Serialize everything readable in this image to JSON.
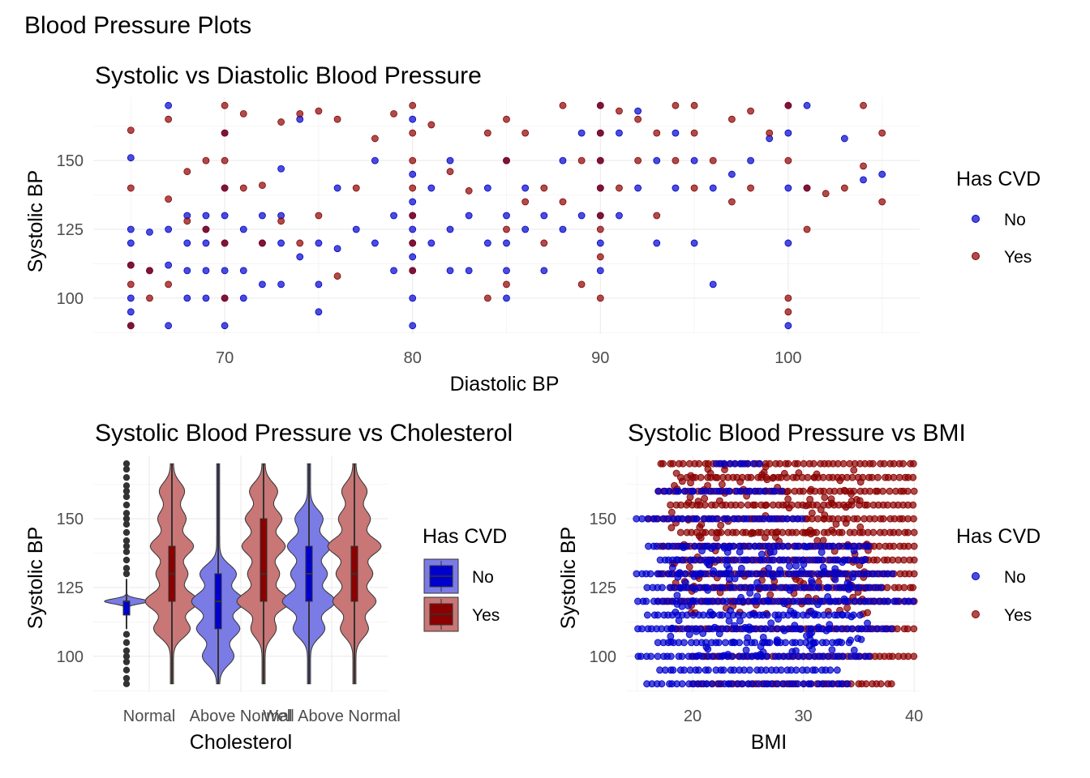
{
  "figure": {
    "title": "Blood Pressure Plots"
  },
  "colors": {
    "no_point": "#0000CD",
    "yes_point": "#8B0000",
    "no_violin_fill": "#7B7BE6",
    "yes_violin_fill": "#C87676",
    "no_box_fill": "#0000CD",
    "yes_box_fill": "#8B0000",
    "outlier": "#333333",
    "grid": "#EBEBEB"
  },
  "legend": {
    "title": "Has CVD",
    "items": [
      "No",
      "Yes"
    ]
  },
  "chart_data": [
    {
      "id": "scatter_dia",
      "type": "scatter",
      "title": "Systolic vs Diastolic Blood Pressure",
      "xlabel": "Diastolic BP",
      "ylabel": "Systolic BP",
      "xlim": [
        63,
        107
      ],
      "ylim": [
        87,
        173
      ],
      "xticks": [
        70,
        80,
        90,
        100
      ],
      "yticks": [
        100,
        125,
        150
      ],
      "grid": true,
      "legend_position": "right",
      "series": [
        {
          "name": "No",
          "x": [
            65,
            65,
            65,
            65,
            65,
            65,
            65,
            66,
            66,
            67,
            67,
            67,
            67,
            68,
            68,
            68,
            68,
            69,
            69,
            69,
            69,
            69,
            70,
            70,
            70,
            70,
            70,
            70,
            70,
            71,
            71,
            71,
            72,
            72,
            72,
            73,
            73,
            73,
            73,
            74,
            74,
            75,
            75,
            75,
            76,
            76,
            77,
            78,
            78,
            79,
            79,
            80,
            80,
            80,
            80,
            80,
            80,
            80,
            80,
            80,
            80,
            81,
            81,
            82,
            82,
            82,
            83,
            83,
            84,
            84,
            85,
            85,
            85,
            85,
            85,
            86,
            86,
            87,
            87,
            88,
            88,
            89,
            89,
            90,
            90,
            90,
            90,
            90,
            90,
            90,
            91,
            91,
            92,
            92,
            93,
            93,
            94,
            94,
            95,
            95,
            96,
            96,
            97,
            98,
            99,
            100,
            100,
            100,
            100,
            100,
            101,
            101,
            103,
            104,
            105
          ],
          "y": [
            151,
            125,
            120,
            112,
            100,
            95,
            90,
            124,
            110,
            170,
            125,
            112,
            90,
            130,
            120,
            110,
            100,
            130,
            125,
            120,
            110,
            100,
            160,
            140,
            130,
            120,
            110,
            100,
            90,
            125,
            110,
            100,
            130,
            120,
            105,
            147,
            130,
            120,
            105,
            165,
            115,
            120,
            105,
            95,
            140,
            118,
            125,
            150,
            120,
            130,
            110,
            165,
            145,
            135,
            130,
            125,
            120,
            115,
            110,
            100,
            90,
            140,
            120,
            150,
            125,
            110,
            130,
            110,
            140,
            120,
            150,
            130,
            120,
            110,
            100,
            140,
            125,
            130,
            110,
            150,
            125,
            160,
            130,
            170,
            160,
            150,
            140,
            130,
            120,
            110,
            160,
            130,
            168,
            140,
            150,
            120,
            160,
            140,
            150,
            120,
            140,
            105,
            145,
            150,
            158,
            170,
            160,
            140,
            120,
            90,
            170,
            140,
            158,
            143,
            145
          ]
        },
        {
          "name": "Yes",
          "x": [
            65,
            65,
            65,
            65,
            65,
            66,
            66,
            67,
            67,
            67,
            68,
            68,
            69,
            69,
            70,
            70,
            70,
            70,
            70,
            70,
            71,
            71,
            72,
            72,
            73,
            73,
            74,
            74,
            75,
            75,
            76,
            76,
            77,
            78,
            79,
            80,
            80,
            80,
            80,
            80,
            80,
            80,
            81,
            82,
            83,
            84,
            84,
            85,
            85,
            85,
            85,
            86,
            86,
            87,
            87,
            88,
            88,
            89,
            89,
            90,
            90,
            90,
            90,
            90,
            90,
            90,
            90,
            91,
            91,
            92,
            92,
            93,
            93,
            94,
            94,
            95,
            95,
            95,
            96,
            97,
            97,
            98,
            98,
            99,
            100,
            100,
            100,
            100,
            101,
            101,
            102,
            103,
            104,
            104,
            105,
            105
          ],
          "y": [
            161,
            140,
            112,
            105,
            90,
            100,
            110,
            165,
            136,
            105,
            146,
            128,
            150,
            125,
            170,
            160,
            150,
            140,
            120,
            100,
            167,
            140,
            141,
            120,
            164,
            128,
            167,
            120,
            168,
            130,
            165,
            108,
            140,
            158,
            167,
            170,
            160,
            150,
            140,
            130,
            120,
            110,
            163,
            146,
            139,
            160,
            100,
            165,
            150,
            125,
            105,
            160,
            135,
            140,
            120,
            170,
            135,
            150,
            105,
            170,
            160,
            150,
            140,
            130,
            125,
            115,
            100,
            168,
            140,
            165,
            150,
            160,
            130,
            170,
            150,
            170,
            160,
            140,
            150,
            165,
            135,
            140,
            168,
            160,
            170,
            150,
            95,
            100,
            140,
            125,
            138,
            140,
            170,
            148,
            160,
            135
          ]
        }
      ]
    },
    {
      "id": "violin_chol",
      "type": "violin",
      "title": "Systolic Blood Pressure vs Cholesterol",
      "xlabel": "Cholesterol",
      "ylabel": "Systolic BP",
      "categories": [
        "Normal",
        "Above Normal",
        "Well Above Normal"
      ],
      "ylim": [
        87,
        173
      ],
      "yticks": [
        100,
        125,
        150
      ],
      "grid": true,
      "legend_position": "right",
      "groups": [
        {
          "category": "Normal",
          "cvd": "No",
          "median": 120,
          "q1": 115,
          "q3": 120,
          "whisker_low": 110,
          "whisker_high": 128,
          "density_peaks": [
            120
          ],
          "outliers": [
            90,
            92,
            95,
            98,
            100,
            102,
            105,
            108,
            130,
            132,
            135,
            138,
            140,
            142,
            145,
            148,
            150,
            152,
            155,
            158,
            160,
            162,
            165,
            168,
            170
          ]
        },
        {
          "category": "Normal",
          "cvd": "Yes",
          "median": 130,
          "q1": 120,
          "q3": 140,
          "whisker_low": 90,
          "whisker_high": 170,
          "density_peaks": [
            120,
            140,
            110,
            130,
            150,
            160
          ]
        },
        {
          "category": "Above Normal",
          "cvd": "No",
          "median": 120,
          "q1": 110,
          "q3": 130,
          "whisker_low": 90,
          "whisker_high": 170,
          "density_peaks": [
            120,
            110,
            130,
            100
          ]
        },
        {
          "category": "Above Normal",
          "cvd": "Yes",
          "median": 130,
          "q1": 120,
          "q3": 150,
          "whisker_low": 90,
          "whisker_high": 170,
          "density_peaks": [
            120,
            140,
            150,
            130,
            160,
            110
          ]
        },
        {
          "category": "Well Above Normal",
          "cvd": "No",
          "median": 130,
          "q1": 120,
          "q3": 140,
          "whisker_low": 90,
          "whisker_high": 170,
          "density_peaks": [
            120,
            140,
            130,
            110,
            150
          ]
        },
        {
          "category": "Well Above Normal",
          "cvd": "Yes",
          "median": 130,
          "q1": 120,
          "q3": 140,
          "whisker_low": 90,
          "whisker_high": 170,
          "density_peaks": [
            140,
            120,
            130,
            150,
            110,
            160
          ]
        }
      ]
    },
    {
      "id": "scatter_bmi",
      "type": "scatter",
      "title": "Systolic Blood Pressure vs BMI",
      "xlabel": "BMI",
      "ylabel": "Systolic BP",
      "xlim": [
        14,
        40.5
      ],
      "ylim": [
        87,
        173
      ],
      "xticks": [
        20,
        30,
        40
      ],
      "yticks": [
        100,
        125,
        150
      ],
      "grid": true,
      "legend_position": "right",
      "series": [
        {
          "name": "No",
          "bands": [
            {
              "y": 90,
              "x": [
                16,
                34
              ]
            },
            {
              "y": 95,
              "x": [
                17,
                33
              ]
            },
            {
              "y": 100,
              "x": [
                15,
                36
              ]
            },
            {
              "y": 105,
              "x": [
                17,
                34
              ]
            },
            {
              "y": 110,
              "x": [
                15,
                38
              ]
            },
            {
              "y": 115,
              "x": [
                16,
                35
              ]
            },
            {
              "y": 120,
              "x": [
                15,
                40
              ]
            },
            {
              "y": 125,
              "x": [
                16,
                37
              ]
            },
            {
              "y": 130,
              "x": [
                15,
                38
              ]
            },
            {
              "y": 135,
              "x": [
                17,
                35
              ]
            },
            {
              "y": 140,
              "x": [
                16,
                36
              ]
            },
            {
              "y": 150,
              "x": [
                15,
                30
              ]
            },
            {
              "y": 160,
              "x": [
                17,
                28
              ]
            },
            {
              "y": 170,
              "x": [
                22,
                26
              ]
            }
          ]
        },
        {
          "name": "Yes",
          "bands": [
            {
              "y": 90,
              "x": [
                20,
                38
              ]
            },
            {
              "y": 100,
              "x": [
                20,
                40
              ]
            },
            {
              "y": 110,
              "x": [
                18,
                40
              ]
            },
            {
              "y": 120,
              "x": [
                17,
                40
              ]
            },
            {
              "y": 125,
              "x": [
                18,
                40
              ]
            },
            {
              "y": 130,
              "x": [
                17,
                40
              ]
            },
            {
              "y": 135,
              "x": [
                19,
                40
              ]
            },
            {
              "y": 140,
              "x": [
                17,
                40
              ]
            },
            {
              "y": 145,
              "x": [
                19,
                40
              ]
            },
            {
              "y": 150,
              "x": [
                16,
                40
              ]
            },
            {
              "y": 155,
              "x": [
                18,
                40
              ]
            },
            {
              "y": 160,
              "x": [
                17,
                40
              ]
            },
            {
              "y": 165,
              "x": [
                19,
                40
              ]
            },
            {
              "y": 170,
              "x": [
                17,
                40
              ]
            }
          ]
        }
      ]
    }
  ]
}
